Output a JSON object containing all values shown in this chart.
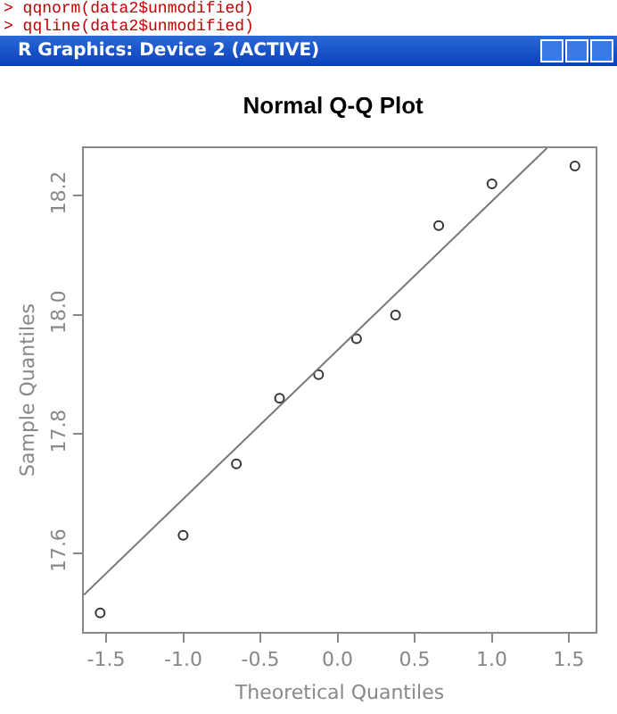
{
  "chart_data": {
    "type": "scatter",
    "title": "Normal Q-Q Plot",
    "xlabel": "Theoretical Quantiles",
    "ylabel": "Sample Quantiles",
    "annotations": [
      "> qqnorm(data2$unmodified)",
      "> qqline(data2$unmodified)",
      "R Graphics: Device 2 (ACTIVE)"
    ],
    "series": [
      {
        "color": "#333333",
        "marker": "circle",
        "x": [
          -1.539,
          -1.001,
          -0.656,
          -0.376,
          -0.123,
          0.123,
          0.376,
          0.656,
          1.001,
          1.539
        ],
        "values": [
          17.5,
          17.63,
          17.75,
          17.86,
          17.9,
          17.96,
          18.0,
          18.15,
          18.22,
          18.25
        ]
      },
      {
        "type": "line",
        "color": "#777777",
        "line_style": "solid",
        "x": [
          -1.645,
          1.357
        ],
        "values": [
          17.53,
          18.28
        ]
      }
    ],
    "xlim": [
      -1.645,
      1.673
    ],
    "ylim": [
      17.468,
      18.28
    ],
    "xticks": [
      -1.5,
      {
        "value": -1,
        "label": "-1.0"
      },
      -0.5,
      {
        "value": 0,
        "label": "0.0"
      },
      0.5,
      {
        "value": 1,
        "label": "1.0"
      },
      1.5
    ],
    "yticks": [
      17.6,
      17.8,
      {
        "value": 18,
        "label": "18.0"
      },
      18.2
    ],
    "grid": false
  }
}
